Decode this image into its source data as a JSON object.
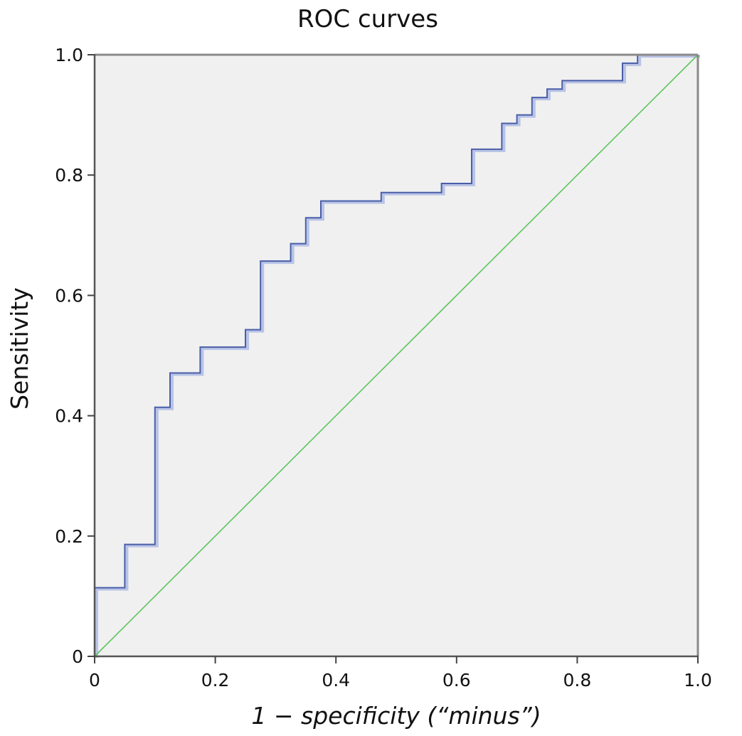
{
  "chart_data": {
    "type": "line",
    "title": "ROC curves",
    "xlabel": "1 − specificity (“minus”)",
    "ylabel": "Sensitivity",
    "xlim": [
      0,
      1
    ],
    "ylim": [
      0,
      1
    ],
    "x_ticks": [
      {
        "value": 0,
        "label": "0"
      },
      {
        "value": 0.2,
        "label": "0.2"
      },
      {
        "value": 0.4,
        "label": "0.4"
      },
      {
        "value": 0.6,
        "label": "0.6"
      },
      {
        "value": 0.8,
        "label": "0.8"
      },
      {
        "value": 1.0,
        "label": "1.0"
      }
    ],
    "y_ticks": [
      {
        "value": 0,
        "label": "0"
      },
      {
        "value": 0.2,
        "label": "0.2"
      },
      {
        "value": 0.4,
        "label": "0.4"
      },
      {
        "value": 0.6,
        "label": "0.6"
      },
      {
        "value": 0.8,
        "label": "0.8"
      },
      {
        "value": 1.0,
        "label": "1.0"
      }
    ],
    "grid": false,
    "background_color": "#f0f0f0",
    "series": [
      {
        "color": "#4a5ea8",
        "shadow_color": "#b8c3e6",
        "step": true,
        "x": [
          0,
          0,
          0.05,
          0.05,
          0.1,
          0.1,
          0.125,
          0.125,
          0.175,
          0.175,
          0.25,
          0.25,
          0.275,
          0.275,
          0.325,
          0.325,
          0.35,
          0.35,
          0.375,
          0.375,
          0.475,
          0.475,
          0.575,
          0.575,
          0.625,
          0.625,
          0.675,
          0.675,
          0.7,
          0.7,
          0.725,
          0.725,
          0.75,
          0.75,
          0.775,
          0.775,
          0.875,
          0.875,
          0.9,
          0.9,
          1.0
        ],
        "y": [
          0,
          0.114,
          0.114,
          0.186,
          0.186,
          0.414,
          0.414,
          0.471,
          0.471,
          0.514,
          0.514,
          0.543,
          0.543,
          0.657,
          0.657,
          0.686,
          0.686,
          0.729,
          0.729,
          0.757,
          0.757,
          0.771,
          0.771,
          0.786,
          0.786,
          0.843,
          0.843,
          0.886,
          0.886,
          0.9,
          0.9,
          0.929,
          0.929,
          0.943,
          0.943,
          0.957,
          0.957,
          0.986,
          0.986,
          1.0,
          1.0
        ]
      },
      {
        "color": "#5fc45f",
        "step": false,
        "x": [
          0,
          1
        ],
        "y": [
          0,
          1
        ]
      }
    ]
  }
}
